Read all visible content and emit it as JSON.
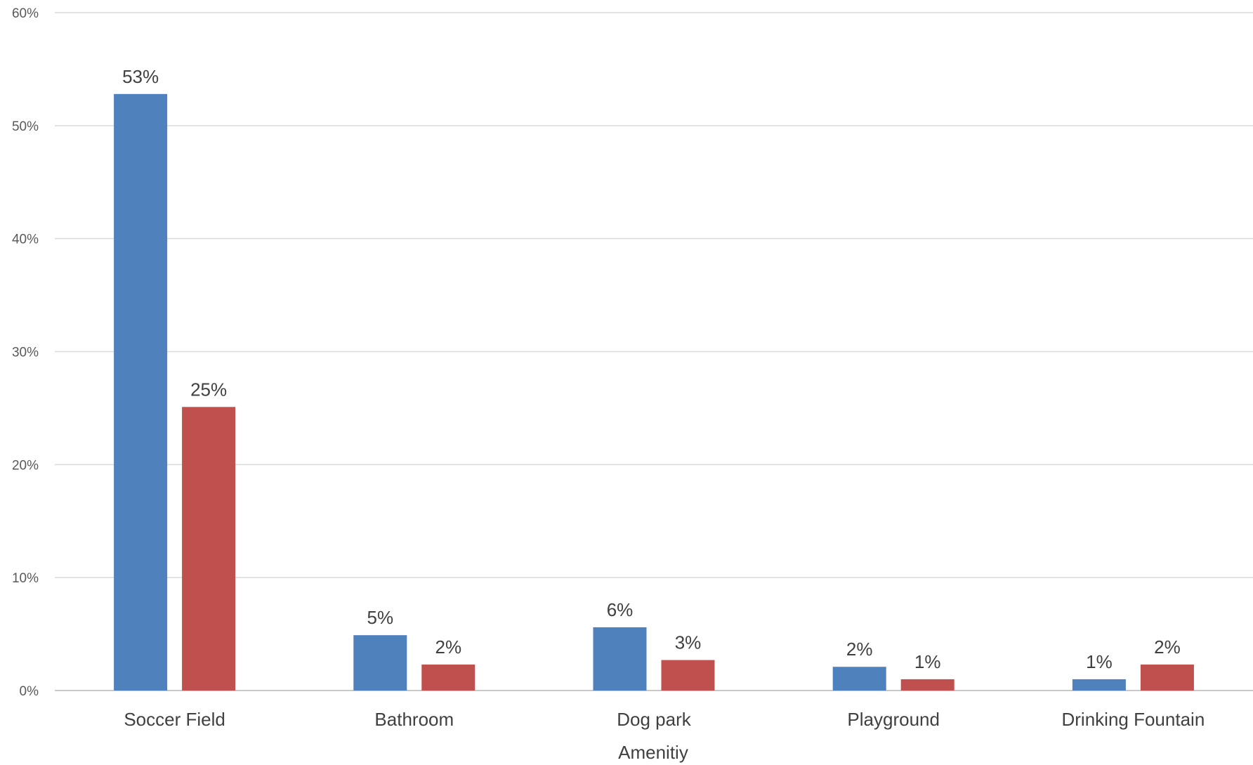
{
  "chart_data": {
    "type": "bar",
    "categories": [
      "Soccer Field",
      "Bathroom",
      "Dog park",
      "Playground",
      "Drinking Fountain"
    ],
    "series": [
      {
        "values": [
          52.8,
          4.9,
          5.6,
          2.1,
          1.0
        ],
        "labels": [
          "53%",
          "5%",
          "6%",
          "2%",
          "1%"
        ],
        "color": "#4f81bd"
      },
      {
        "values": [
          25.1,
          2.3,
          2.7,
          1.0,
          2.3
        ],
        "labels": [
          "25%",
          "2%",
          "3%",
          "1%",
          "2%"
        ],
        "color": "#c0504d"
      }
    ],
    "xlabel": "Amenitiy",
    "ylabel": "",
    "ylim": [
      0,
      60
    ],
    "yticks": [
      0,
      10,
      20,
      30,
      40,
      50,
      60
    ],
    "ytick_labels": [
      "0%",
      "10%",
      "20%",
      "30%",
      "40%",
      "50%",
      "60%"
    ],
    "grid": true,
    "legend": "none"
  }
}
